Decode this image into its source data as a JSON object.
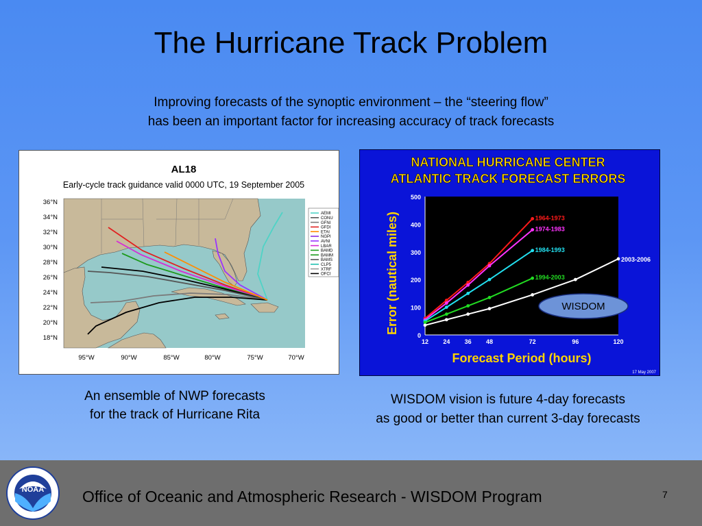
{
  "slide": {
    "title": "The Hurricane Track Problem",
    "subtitle_line1": "Improving forecasts of the synoptic environment – the “steering flow”",
    "subtitle_line2": "has been an important factor for increasing accuracy of track forecasts",
    "caption_left_line1": "An ensemble of NWP forecasts",
    "caption_left_line2": "for the track of Hurricane Rita",
    "caption_right_line1": "WISDOM vision is future 4-day forecasts",
    "caption_right_line2": "as good or better than current 3-day forecasts",
    "footer_text": "Office of Oceanic and Atmospheric Research - WISDOM Program",
    "page_number": "7",
    "logo_text": "NOAA"
  },
  "map": {
    "title": "AL18",
    "subtitle": "Early-cycle track guidance valid 0000 UTC, 19 September 2005",
    "lat_labels": [
      "36°N",
      "34°N",
      "32°N",
      "30°N",
      "28°N",
      "26°N",
      "24°N",
      "22°N",
      "20°N",
      "18°N"
    ],
    "lon_labels": [
      "95°W",
      "90°W",
      "85°W",
      "80°W",
      "75°W",
      "70°W"
    ],
    "legend": [
      "AEMI",
      "CONU",
      "GFNI",
      "GFDI",
      "ETAI",
      "NGPI",
      "AVNI",
      "LBAR",
      "BAMD",
      "BAMM",
      "BAMS",
      "CLP5",
      "XTRF",
      "OFCI"
    ],
    "legend_colors": [
      "#4fd3c6",
      "#555555",
      "#7a7a7a",
      "#e02020",
      "#ff8c00",
      "#8a2be2",
      "#9933ff",
      "#d62ad6",
      "#1fa01f",
      "#1d9a1d",
      "#555555",
      "#20c0b0",
      "#999999",
      "#000000"
    ]
  },
  "chart_data": {
    "type": "line",
    "title_line1": "NATIONAL HURRICANE CENTER",
    "title_line2": "ATLANTIC TRACK FORECAST ERRORS",
    "xlabel": "Forecast Period (hours)",
    "ylabel": "Error (nautical miles)",
    "x": [
      12,
      24,
      36,
      48,
      72,
      96,
      120
    ],
    "x_ticks": [
      "12",
      "24",
      "36",
      "48",
      "72",
      "96",
      "120"
    ],
    "y_ticks": [
      "0",
      "100",
      "200",
      "300",
      "400",
      "500"
    ],
    "xlim": [
      12,
      120
    ],
    "ylim": [
      0,
      500
    ],
    "date_note": "17 May 2007",
    "annotation": "WISDOM",
    "series": [
      {
        "name": "1964-1973",
        "color": "#ff1a1a",
        "x": [
          12,
          24,
          36,
          48,
          72
        ],
        "values": [
          60,
          125,
          190,
          258,
          420
        ]
      },
      {
        "name": "1974-1983",
        "color": "#ff33ff",
        "x": [
          12,
          24,
          36,
          48,
          72
        ],
        "values": [
          55,
          115,
          180,
          250,
          380
        ]
      },
      {
        "name": "1984-1993",
        "color": "#22e0f0",
        "x": [
          12,
          24,
          36,
          48,
          72
        ],
        "values": [
          50,
          100,
          150,
          200,
          305
        ]
      },
      {
        "name": "1994-2003",
        "color": "#22dd22",
        "x": [
          12,
          24,
          36,
          48,
          72
        ],
        "values": [
          45,
          75,
          105,
          135,
          205
        ]
      },
      {
        "name": "2003-2006",
        "color": "#ffffff",
        "x": [
          12,
          24,
          36,
          48,
          72,
          96,
          120
        ],
        "values": [
          35,
          55,
          75,
          95,
          145,
          200,
          275
        ]
      }
    ]
  }
}
